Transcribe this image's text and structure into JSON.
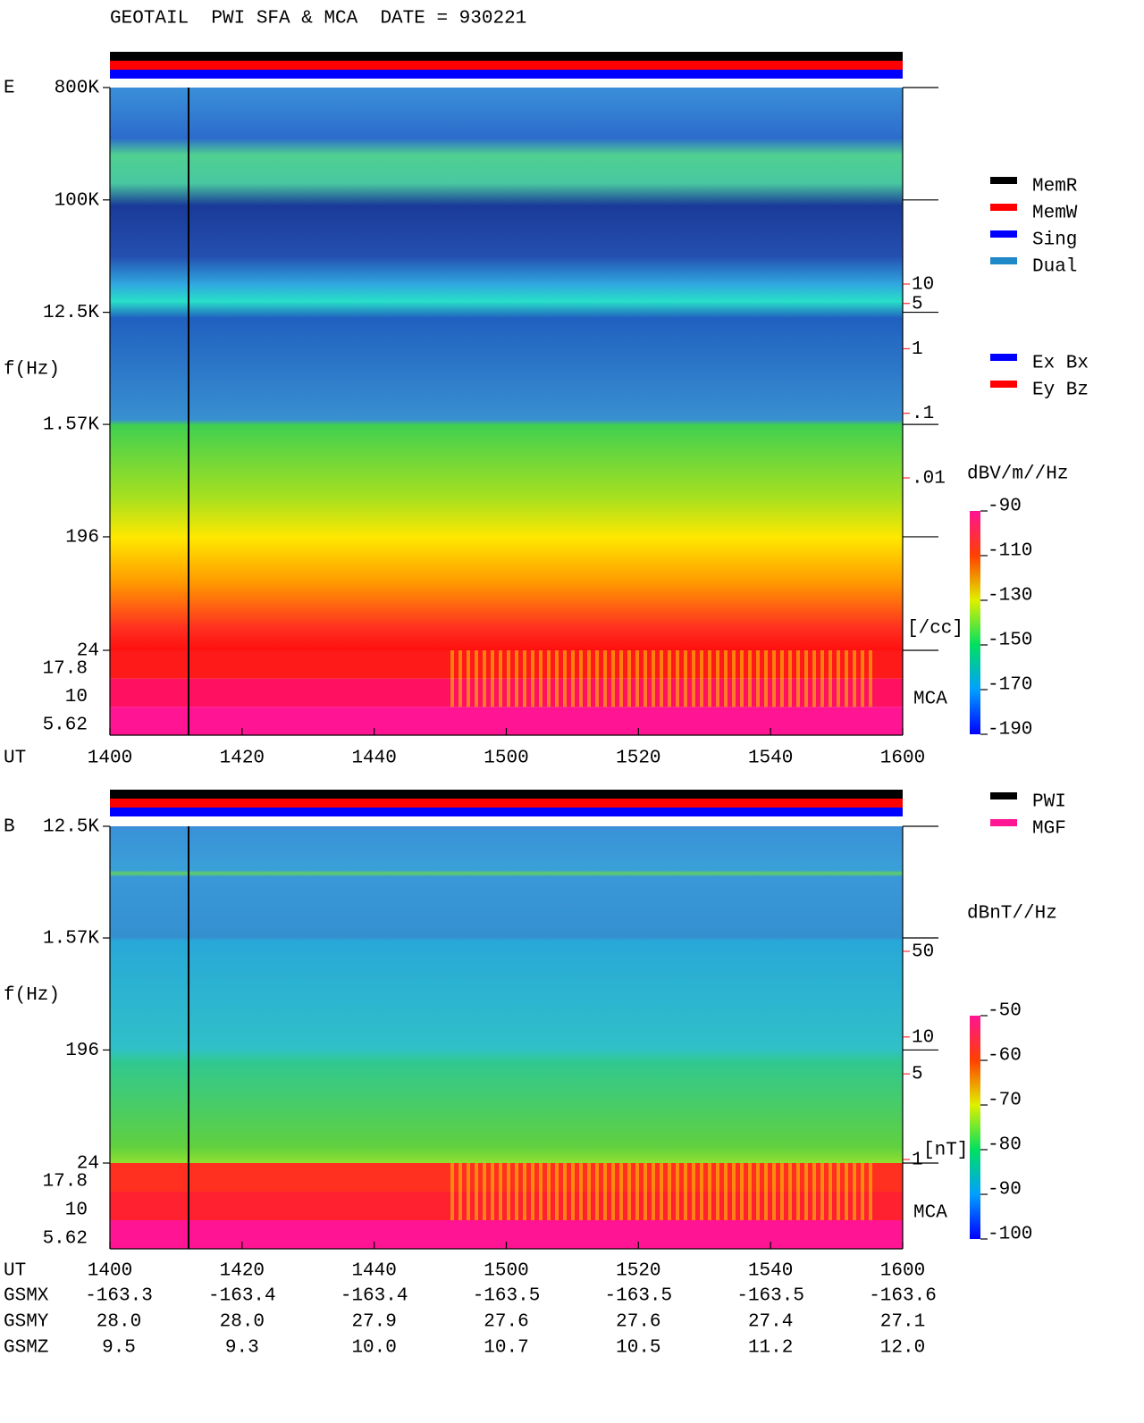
{
  "title": "GEOTAIL  PWI SFA & MCA  DATE = 930221",
  "chart_data": [
    {
      "type": "spectrogram",
      "panel_label": "E",
      "ylabel": "f(Hz)",
      "xlabel": "UT",
      "mca_label": "MCA",
      "log_y": true,
      "ylim": [
        24,
        800000
      ],
      "yticks": [
        {
          "value": 800000,
          "label": "800K"
        },
        {
          "value": 100000,
          "label": "100K"
        },
        {
          "value": 12500,
          "label": "12.5K"
        },
        {
          "value": 1570,
          "label": "1.57K"
        },
        196,
        24
      ],
      "mca_channels": [
        17.8,
        10,
        5.62
      ],
      "categories": [
        "1400",
        "1420",
        "1440",
        "1500",
        "1520",
        "1540",
        "1600"
      ],
      "legend": [
        {
          "name": "MemR",
          "color": "#000000"
        },
        {
          "name": "MemW",
          "color": "#ff0000"
        },
        {
          "name": "Sing",
          "color": "#0000ff"
        },
        {
          "name": "Dual",
          "color": "#1e88c8"
        }
      ],
      "legend2": [
        {
          "name": "Ex Bx",
          "color": "#0000ff"
        },
        {
          "name": "Ey Bz",
          "color": "#ff0000"
        }
      ],
      "colorbar": {
        "title": "dBV/m//Hz",
        "lim": [
          -190,
          -90
        ],
        "ticks": [
          -90,
          -110,
          -130,
          -150,
          -170,
          -190
        ]
      },
      "scale": {
        "unit": "[/cc]",
        "color": "#ff0000",
        "log": true,
        "lim": [
          0.01,
          10
        ],
        "ticks": [
          10,
          5,
          1,
          {
            "value": 0.1,
            "label": ".1"
          },
          {
            "value": 0.01,
            "label": ".01"
          }
        ]
      }
    },
    {
      "type": "spectrogram",
      "panel_label": "B",
      "ylabel": "f(Hz)",
      "xlabel": "UT",
      "mca_label": "MCA",
      "log_y": true,
      "ylim": [
        24,
        12500
      ],
      "yticks": [
        {
          "value": 12500,
          "label": "12.5K"
        },
        {
          "value": 1570,
          "label": "1.57K"
        },
        196,
        24
      ],
      "mca_channels": [
        17.8,
        10,
        5.62
      ],
      "categories": [
        "1400",
        "1420",
        "1440",
        "1500",
        "1520",
        "1540",
        "1600"
      ],
      "legend": [
        {
          "name": "PWI",
          "color": "#000000"
        },
        {
          "name": "MGF",
          "color": "#ff1493"
        }
      ],
      "colorbar": {
        "title": "dBnT//Hz",
        "lim": [
          -100,
          -50
        ],
        "ticks": [
          -50,
          -60,
          -70,
          -80,
          -90,
          -100
        ]
      },
      "scale": {
        "unit": "[nT]",
        "color": "#ff0000",
        "log": true,
        "lim": [
          1,
          50
        ],
        "ticks": [
          50,
          10,
          5,
          1
        ]
      }
    }
  ],
  "orbit": {
    "rows": [
      {
        "name": "GSMX",
        "values": [
          "-163.3",
          "-163.4",
          "-163.4",
          "-163.5",
          "-163.5",
          "-163.5",
          "-163.6"
        ]
      },
      {
        "name": "GSMY",
        "values": [
          "28.0",
          "28.0",
          "27.9",
          "27.6",
          "27.6",
          "27.4",
          "27.1"
        ]
      },
      {
        "name": "GSMZ",
        "values": [
          "9.5",
          "9.3",
          "10.0",
          "10.7",
          "10.5",
          "11.2",
          "12.0"
        ]
      }
    ]
  }
}
